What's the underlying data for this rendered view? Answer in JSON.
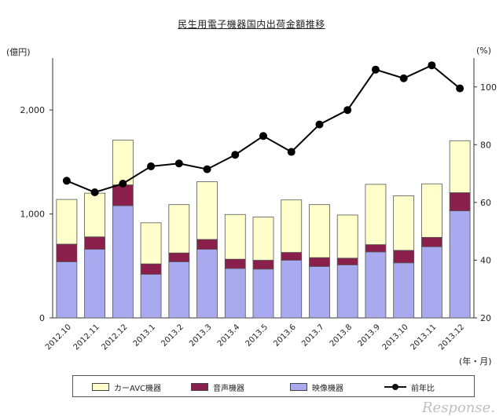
{
  "chart_data": {
    "type": "bar",
    "title": "民生用電子機器国内出荷金額推移",
    "left_unit": "(億円)",
    "right_unit": "(%)",
    "x_unit": "(年・月)",
    "categories": [
      "2012.10",
      "2012.11",
      "2012.12",
      "2013.1",
      "2013.2",
      "2013.3",
      "2013.4",
      "2013.5",
      "2013.6",
      "2013.7",
      "2013.8",
      "2013.9",
      "2013.10",
      "2013.11",
      "2013.12"
    ],
    "y_left_ticks": [
      "0",
      "1,000",
      "2,000"
    ],
    "y_left_range": [
      0,
      2500
    ],
    "y_right_ticks": [
      "20",
      "40",
      "60",
      "80",
      "100"
    ],
    "y_right_range": [
      20,
      110
    ],
    "series": [
      {
        "name": "映像機器",
        "type": "stacked-bar",
        "color": "#a9a9f0",
        "values": [
          540,
          660,
          1080,
          420,
          540,
          660,
          475,
          470,
          555,
          495,
          510,
          635,
          530,
          685,
          1030
        ]
      },
      {
        "name": "音声機器",
        "type": "stacked-bar",
        "color": "#8b1f4b",
        "values": [
          170,
          120,
          200,
          100,
          85,
          95,
          90,
          85,
          75,
          85,
          65,
          70,
          120,
          90,
          175
        ]
      },
      {
        "name": "カーAVC機器",
        "type": "stacked-bar",
        "color": "#ffffcc",
        "values": [
          430,
          420,
          430,
          395,
          465,
          555,
          430,
          415,
          505,
          510,
          415,
          580,
          525,
          515,
          500
        ]
      },
      {
        "name": "前年比",
        "type": "line",
        "axis": "right",
        "color": "#000000",
        "values": [
          67.5,
          63.5,
          66.5,
          72.5,
          73.5,
          71.5,
          76.5,
          83,
          77.5,
          87,
          92,
          106,
          103,
          107.5,
          99.5
        ]
      }
    ],
    "legend_position": "bottom"
  },
  "legend": {
    "car_avc": "カーAVC機器",
    "audio": "音声機器",
    "video": "映像機器",
    "yoy": "前年比"
  },
  "watermark": "Response."
}
